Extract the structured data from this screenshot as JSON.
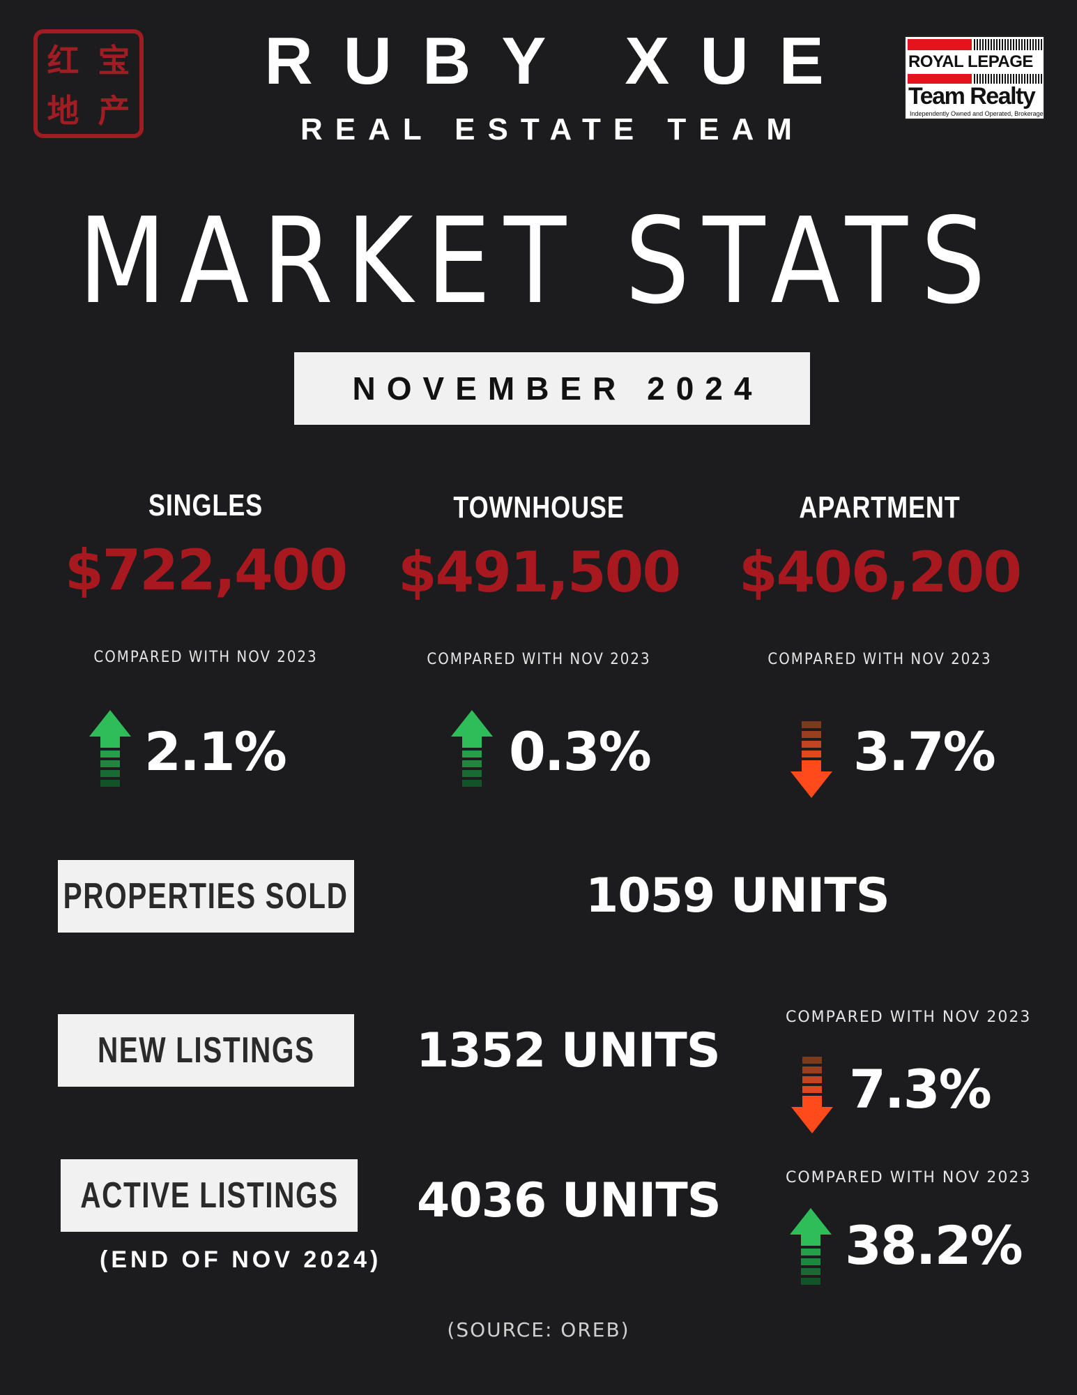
{
  "header": {
    "seal_chars": [
      "红",
      "宝",
      "地",
      "产"
    ],
    "brand_title": "RUBY XUE",
    "brand_subtitle": "REAL ESTATE TEAM",
    "brokerage": {
      "name_line": "ROYAL LEPAGE",
      "team_line": "Team Realty",
      "fine_print": "Independently Owned and Operated, Brokerage"
    }
  },
  "title": "MARKET STATS",
  "period": "NOVEMBER 2024",
  "prices": [
    {
      "type": "SINGLES",
      "price": "$722,400",
      "compare_label": "COMPARED WITH NOV 2023",
      "direction": "up",
      "change": "2.1%"
    },
    {
      "type": "TOWNHOUSE",
      "price": "$491,500",
      "compare_label": "COMPARED WITH NOV 2023",
      "direction": "up",
      "change": "0.3%"
    },
    {
      "type": "APARTMENT",
      "price": "$406,200",
      "compare_label": "COMPARED WITH NOV 2023",
      "direction": "down",
      "change": "3.7%"
    }
  ],
  "properties_sold": {
    "label": "PROPERTIES SOLD",
    "value": "1059 UNITS"
  },
  "new_listings": {
    "label": "NEW LISTINGS",
    "value": "1352 UNITS",
    "compare_label": "COMPARED WITH NOV 2023",
    "direction": "down",
    "change": "7.3%"
  },
  "active_listings": {
    "label": "ACTIVE LISTINGS",
    "note": "(END OF NOV 2024)",
    "value": "4036 UNITS",
    "compare_label": "COMPARED WITH NOV 2023",
    "direction": "up",
    "change": "38.2%"
  },
  "source": "(SOURCE: OREB)",
  "colors": {
    "background": "#1c1c1e",
    "price_red": "#a7191f",
    "up_green": "#2ebd59",
    "down_orange": "#ff4a1c"
  }
}
